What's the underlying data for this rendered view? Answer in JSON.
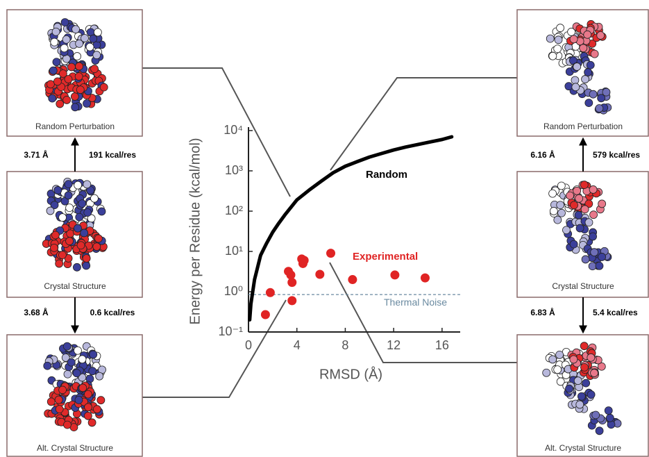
{
  "chart_data": {
    "type": "scatter",
    "xlabel": "RMSD (Å)",
    "ylabel": "Energy per Residue (kcal/mol)",
    "xlim": [
      0,
      17.5
    ],
    "ylim": [
      0.1,
      10000
    ],
    "ylog": true,
    "xticks": [
      0,
      4,
      8,
      12,
      16
    ],
    "yticks": [
      {
        "value": 0.1,
        "label": "10⁻¹"
      },
      {
        "value": 1,
        "label": "10⁰"
      },
      {
        "value": 10,
        "label": "10¹"
      },
      {
        "value": 100,
        "label": "10²"
      },
      {
        "value": 1000,
        "label": "10³"
      },
      {
        "value": 10000,
        "label": "10⁴"
      }
    ],
    "series": [
      {
        "name": "Random",
        "color": "#000000",
        "line": true,
        "x": [
          0.1,
          0.2,
          0.35,
          0.5,
          0.75,
          1,
          1.5,
          2,
          2.5,
          3,
          4,
          5,
          6,
          7,
          8,
          9,
          10,
          11,
          12,
          13,
          14,
          15,
          16,
          16.8
        ],
        "values": [
          0.2,
          0.5,
          1,
          2,
          4,
          8,
          16,
          30,
          50,
          80,
          190,
          330,
          550,
          900,
          1300,
          1700,
          2200,
          2700,
          3300,
          3900,
          4500,
          5200,
          6000,
          7000
        ]
      },
      {
        "name": "Experimental",
        "color": "#e02424",
        "line": false,
        "x": [
          1.4,
          1.8,
          3.3,
          3.5,
          3.6,
          3.6,
          4.4,
          4.5,
          4.6,
          5.9,
          6.8,
          8.6,
          12.1,
          14.6
        ],
        "values": [
          0.27,
          0.95,
          3.2,
          2.6,
          0.6,
          1.7,
          6.5,
          5,
          6,
          2.7,
          9,
          2,
          2.6,
          2.2
        ]
      }
    ],
    "thermal_noise": {
      "label": "Thermal Noise",
      "value": 0.85,
      "color": "#6a8aa0"
    }
  },
  "panels": {
    "left": {
      "top": "Random Perturbation",
      "middle": "Crystal Structure",
      "bottom": "Alt. Crystal Structure",
      "upper_rmsd": "3.71 Å",
      "upper_energy": "191 kcal/res",
      "lower_rmsd": "3.68 Å",
      "lower_energy": "0.6 kcal/res"
    },
    "right": {
      "top": "Random Perturbation",
      "middle": "Crystal Structure",
      "bottom": "Alt. Crystal Structure",
      "upper_rmsd": "6.16 Å",
      "upper_energy": "579 kcal/res",
      "lower_rmsd": "6.83 Å",
      "lower_energy": "5.4 kcal/res"
    }
  }
}
